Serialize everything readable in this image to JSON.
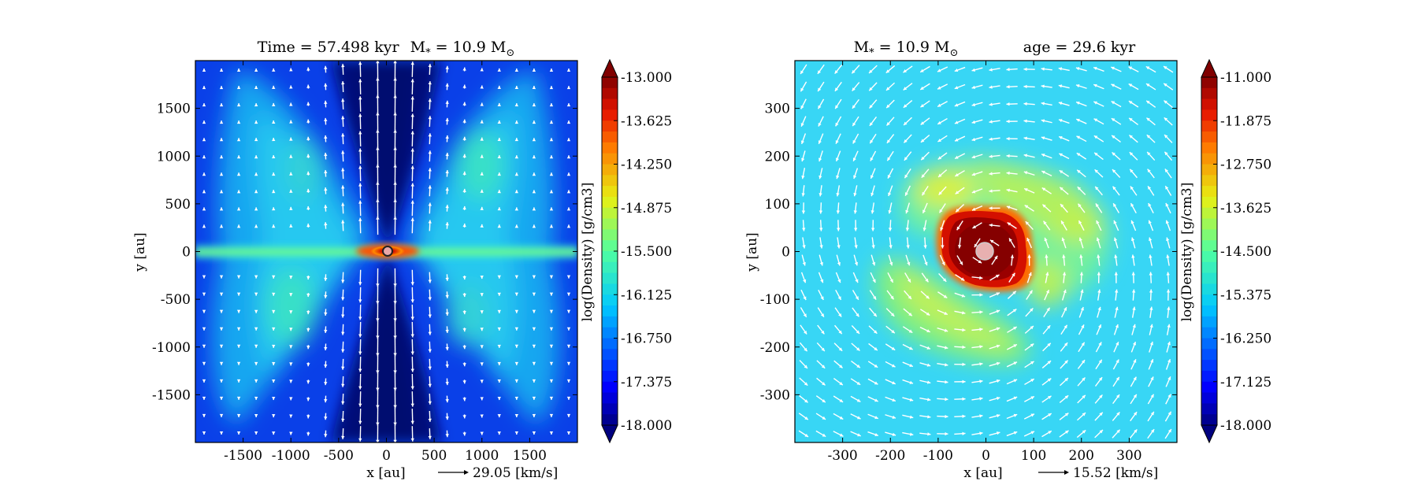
{
  "chart_data": [
    {
      "type": "heatmap",
      "title_left": "Time = 57.498 kyr",
      "title_right": "M",
      "title_sub": "*",
      "title_mid": " = 10.9 M",
      "title_sun": "⊙",
      "xlabel": "x [au]",
      "ylabel": "y [au]",
      "xlim": [
        -2000,
        2000
      ],
      "ylim": [
        -2000,
        2000
      ],
      "xticks": [
        -1500,
        -1000,
        -500,
        0,
        500,
        1000,
        1500
      ],
      "yticks": [
        -1500,
        -1000,
        -500,
        0,
        500,
        1000,
        1500
      ],
      "colorbar": {
        "label": "log(Density) [g/cm3]",
        "range": [
          -18.0,
          -13.0
        ],
        "ticks": [
          "-13.000",
          "-13.625",
          "-14.250",
          "-14.875",
          "-15.500",
          "-16.125",
          "-16.750",
          "-17.375",
          "-18.000"
        ]
      },
      "quiver_label": "29.05 [km/s]",
      "features": {
        "outflow_cavity": "bipolar low-density cavity along y-axis",
        "disk": "thin dense disk along x-axis",
        "star_marker": "pink circle at origin"
      }
    },
    {
      "type": "heatmap",
      "title_left": "M",
      "title_sub": "*",
      "title_mid": " = 10.9 M",
      "title_sun": "⊙",
      "title_right": "age = 29.6 kyr",
      "xlabel": "x [au]",
      "ylabel": "y [au]",
      "xlim": [
        -400,
        400
      ],
      "ylim": [
        -400,
        400
      ],
      "xticks": [
        -300,
        -200,
        -100,
        0,
        100,
        200,
        300
      ],
      "yticks": [
        -300,
        -200,
        -100,
        0,
        100,
        200,
        300
      ],
      "colorbar": {
        "label": "log(Density) [g/cm3]",
        "range": [
          -18.0,
          -11.0
        ],
        "ticks": [
          "-11.000",
          "-11.875",
          "-12.750",
          "-13.625",
          "-14.500",
          "-15.375",
          "-16.250",
          "-17.125",
          "-18.000"
        ]
      },
      "quiver_label": "15.52 [km/s]",
      "features": {
        "dense_core": "dense red region within ~80 au of origin",
        "spiral_arms": "yellow-green spiral structures",
        "star_marker": "pink circle at origin"
      }
    }
  ]
}
